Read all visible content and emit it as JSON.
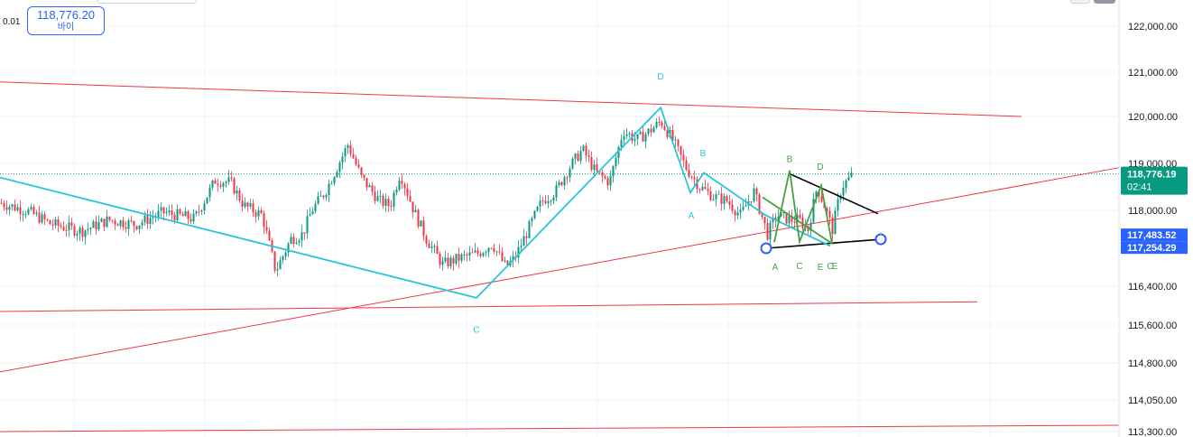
{
  "order_panel": {
    "lot": "0.01",
    "price": "118,776.20",
    "side": "바이"
  },
  "price_axis": {
    "ticks": [
      {
        "label": "122,000.00",
        "value": 122000
      },
      {
        "label": "121,000.00",
        "value": 121000
      },
      {
        "label": "120,000.00",
        "value": 120000
      },
      {
        "label": "119,000.00",
        "value": 119000
      },
      {
        "label": "118,000.00",
        "value": 118000
      },
      {
        "label": "116,400.00",
        "value": 116400
      },
      {
        "label": "115,600.00",
        "value": 115600
      },
      {
        "label": "114,800.00",
        "value": 114800
      },
      {
        "label": "114,050.00",
        "value": 114050
      },
      {
        "label": "113,300.00",
        "value": 113300
      }
    ],
    "last_price": {
      "label": "118,776.19",
      "countdown": "02:41",
      "value": 118776.19,
      "color": "#089981"
    },
    "markers": [
      {
        "label": "117,483.52",
        "value": 117483.52,
        "color": "#2962ff"
      },
      {
        "label": "117,254.29",
        "value": 117254.29,
        "color": "#2962ff"
      }
    ]
  },
  "chart_data": {
    "type": "candlestick",
    "ylim": [
      113300,
      122450
    ],
    "x_range": [
      0,
      1240
    ],
    "last_price": 118776.19,
    "candle_path": [
      [
        0,
        118160
      ],
      [
        30,
        117990
      ],
      [
        55,
        117720
      ],
      [
        90,
        117560
      ],
      [
        120,
        117800
      ],
      [
        150,
        117700
      ],
      [
        180,
        117960
      ],
      [
        215,
        117820
      ],
      [
        238,
        118640
      ],
      [
        255,
        118600
      ],
      [
        270,
        118100
      ],
      [
        290,
        117900
      ],
      [
        305,
        116720
      ],
      [
        322,
        117400
      ],
      [
        335,
        117500
      ],
      [
        345,
        118000
      ],
      [
        360,
        118400
      ],
      [
        385,
        119400
      ],
      [
        400,
        118700
      ],
      [
        420,
        118200
      ],
      [
        432,
        118100
      ],
      [
        443,
        118800
      ],
      [
        458,
        118000
      ],
      [
        472,
        117400
      ],
      [
        490,
        116860
      ],
      [
        510,
        117000
      ],
      [
        530,
        117100
      ],
      [
        545,
        117300
      ],
      [
        560,
        116800
      ],
      [
        570,
        117000
      ],
      [
        585,
        117600
      ],
      [
        600,
        118200
      ],
      [
        615,
        118400
      ],
      [
        630,
        118900
      ],
      [
        645,
        119300
      ],
      [
        660,
        118800
      ],
      [
        675,
        118600
      ],
      [
        690,
        119700
      ],
      [
        705,
        119500
      ],
      [
        720,
        119700
      ],
      [
        732,
        119900
      ],
      [
        745,
        119500
      ],
      [
        760,
        118900
      ],
      [
        775,
        118500
      ],
      [
        790,
        118300
      ],
      [
        805,
        118200
      ],
      [
        820,
        117900
      ],
      [
        835,
        118400
      ],
      [
        850,
        117500
      ],
      [
        860,
        117900
      ],
      [
        875,
        117800
      ],
      [
        885,
        117800
      ],
      [
        895,
        117600
      ],
      [
        905,
        118500
      ],
      [
        915,
        118000
      ],
      [
        922,
        117600
      ],
      [
        932,
        118500
      ],
      [
        945,
        118776
      ]
    ],
    "trendlines": [
      {
        "color": "#f23645",
        "points": [
          [
            0,
            120780
          ],
          [
            1132,
            120000
          ]
        ]
      },
      {
        "color": "#f23645",
        "points": [
          [
            0,
            115880
          ],
          [
            1083,
            116080
          ]
        ]
      },
      {
        "color": "#f23645",
        "points": [
          [
            0,
            113300
          ],
          [
            1240,
            113450
          ]
        ]
      },
      {
        "color": "#f23645",
        "points": [
          [
            0,
            114620
          ],
          [
            1240,
            118910
          ]
        ]
      },
      {
        "color": "#000000",
        "points": [
          [
            875,
            118780
          ],
          [
            973,
            117930
          ]
        ]
      },
      {
        "color": "#000000",
        "points": [
          [
            849,
            117200
          ],
          [
            976,
            117390
          ]
        ]
      }
    ],
    "handles": [
      {
        "color": "#2962ff",
        "point": [
          849,
          117200
        ]
      },
      {
        "color": "#2962ff",
        "point": [
          976,
          117390
        ]
      }
    ],
    "patterns": [
      {
        "color": "#26c6da",
        "points": [
          [
            0,
            118700
          ],
          [
            528,
            116160
          ],
          [
            732,
            120200
          ],
          [
            765,
            118380
          ],
          [
            780,
            118800
          ],
          [
            848,
            117900
          ],
          [
            920,
            117250
          ]
        ],
        "labels": [
          {
            "text": "C",
            "point": [
              528,
              115440
            ]
          },
          {
            "text": "D",
            "point": [
              732,
              120840
            ]
          },
          {
            "text": "A",
            "point": [
              766,
              117830
            ]
          },
          {
            "text": "B",
            "point": [
              779,
              119150
            ]
          }
        ]
      },
      {
        "color": "#43a047",
        "points": [
          [
            858,
            117330
          ],
          [
            875,
            118850
          ],
          [
            886,
            117340
          ],
          [
            910,
            118530
          ],
          [
            922,
            117300
          ],
          [
            845,
            118280
          ]
        ],
        "labels": [
          {
            "text": "A",
            "point": [
              859,
              116740
            ]
          },
          {
            "text": "B",
            "point": [
              875,
              119030
            ]
          },
          {
            "text": "C",
            "point": [
              886,
              116760
            ]
          },
          {
            "text": "D",
            "point": [
              909,
              118870
            ]
          },
          {
            "text": "E",
            "point": [
              909,
              116740
            ]
          },
          {
            "text": "C",
            "point": [
              920,
              116760
            ]
          },
          {
            "text": "E",
            "point": [
              925,
              116760
            ]
          }
        ]
      }
    ]
  }
}
